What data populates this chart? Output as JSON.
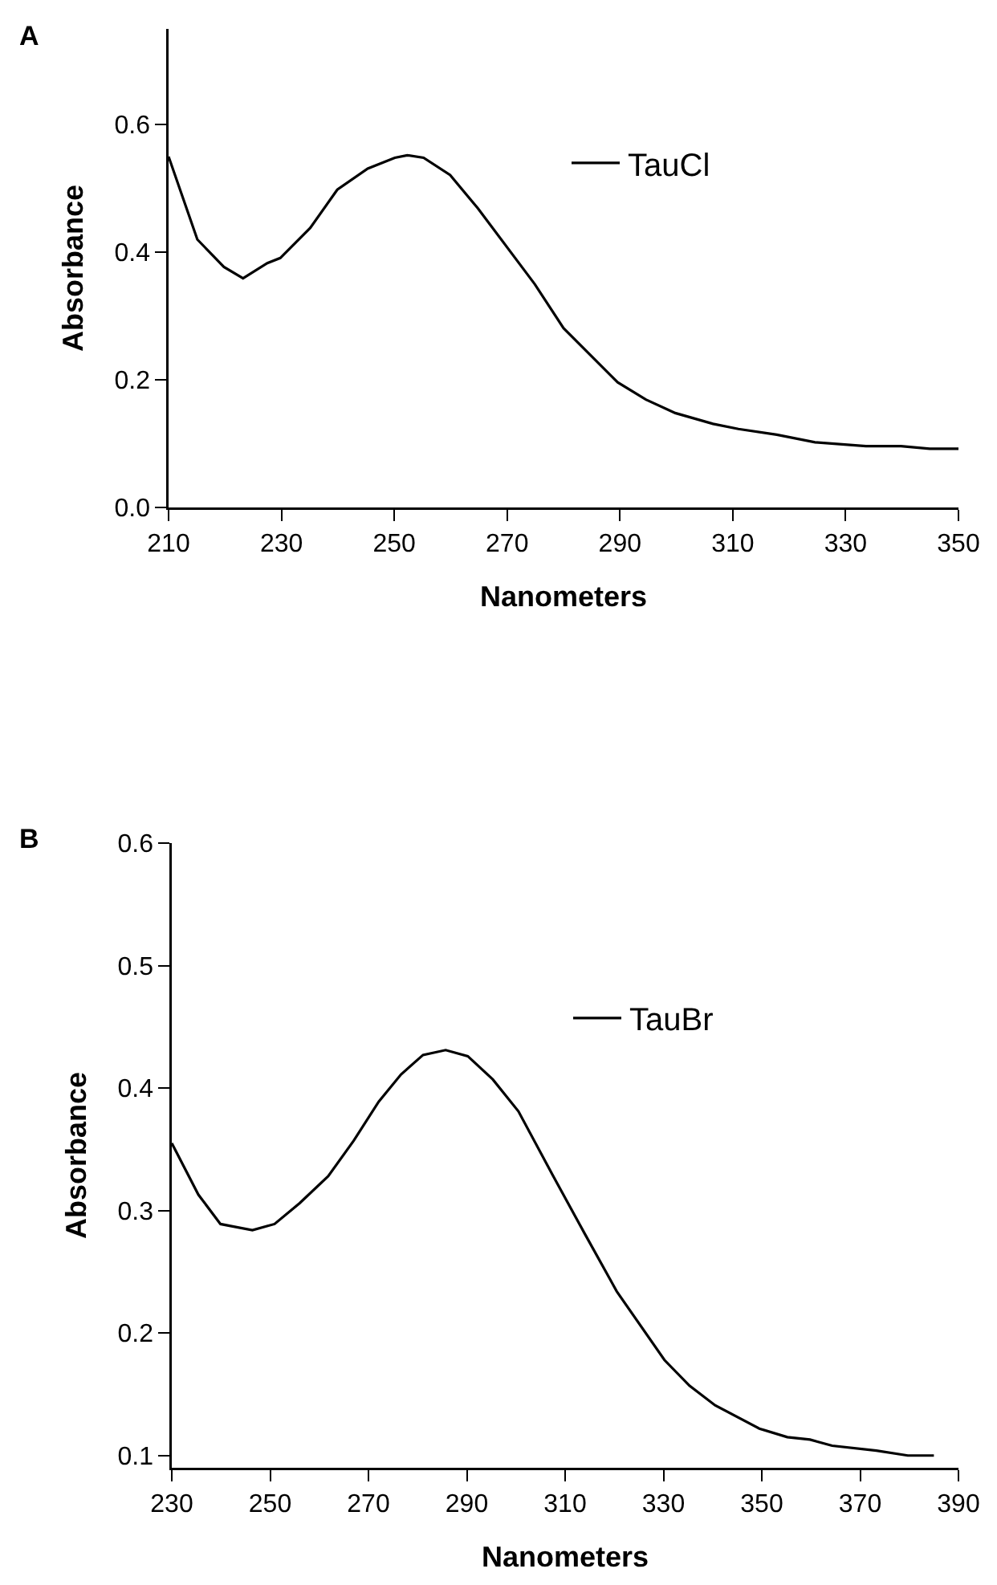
{
  "chart_data": [
    {
      "type": "line",
      "title": "A",
      "xlabel": "Nanometers",
      "ylabel": "Absorbance",
      "x": [
        210,
        215.1,
        219.8,
        223.2,
        227.5,
        229.8,
        235.1,
        239.9,
        245.3,
        250.1,
        252.3,
        255.2,
        259.9,
        264.8,
        274.9,
        280,
        289.6,
        294.6,
        299.8,
        306.5,
        311,
        317.8,
        324.6,
        333.6,
        339.8,
        344.9,
        350
      ],
      "series": [
        {
          "name": "TauCl",
          "color": "#000000",
          "values": [
            0.55,
            0.42,
            0.377,
            0.359,
            0.383,
            0.391,
            0.438,
            0.498,
            0.531,
            0.548,
            0.552,
            0.548,
            0.521,
            0.469,
            0.35,
            0.281,
            0.196,
            0.169,
            0.148,
            0.131,
            0.123,
            0.114,
            0.102,
            0.096,
            0.096,
            0.092,
            0.092
          ]
        }
      ],
      "xlim": [
        210,
        350
      ],
      "xticks": [
        210,
        230,
        250,
        270,
        290,
        310,
        330,
        350
      ],
      "ylim": [
        0,
        0.75
      ],
      "yticks": [
        {
          "value": 0,
          "label": "0.0"
        },
        0.2,
        0.4,
        0.6
      ],
      "grid": false,
      "legend": "top right",
      "marker": "none",
      "line_style": "solid"
    },
    {
      "type": "line",
      "title": "B",
      "xlabel": "Nanometers",
      "ylabel": "Absorbance",
      "x": [
        230,
        235.4,
        239.9,
        246.4,
        250.9,
        256,
        261.8,
        267,
        272.1,
        276.6,
        281.1,
        285.7,
        290.2,
        295.3,
        300.5,
        307.6,
        314,
        320.5,
        330.2,
        335.3,
        340.5,
        349.5,
        355.2,
        359.8,
        364.3,
        373.3,
        379.7,
        385
      ],
      "series": [
        {
          "name": "TauBr",
          "color": "#000000",
          "values": [
            0.355,
            0.313,
            0.289,
            0.284,
            0.289,
            0.306,
            0.328,
            0.357,
            0.389,
            0.411,
            0.427,
            0.431,
            0.426,
            0.407,
            0.381,
            0.328,
            0.281,
            0.234,
            0.178,
            0.157,
            0.141,
            0.122,
            0.115,
            0.113,
            0.108,
            0.104,
            0.1,
            0.1
          ]
        }
      ],
      "xlim": [
        230,
        390
      ],
      "xticks": [
        230,
        250,
        270,
        290,
        310,
        330,
        350,
        370,
        390
      ],
      "ylim": [
        0.09,
        0.6
      ],
      "yticks": [
        0.1,
        0.2,
        0.3,
        0.4,
        0.5,
        0.6
      ],
      "grid": false,
      "legend": "top right",
      "marker": "none",
      "line_style": "solid"
    }
  ]
}
